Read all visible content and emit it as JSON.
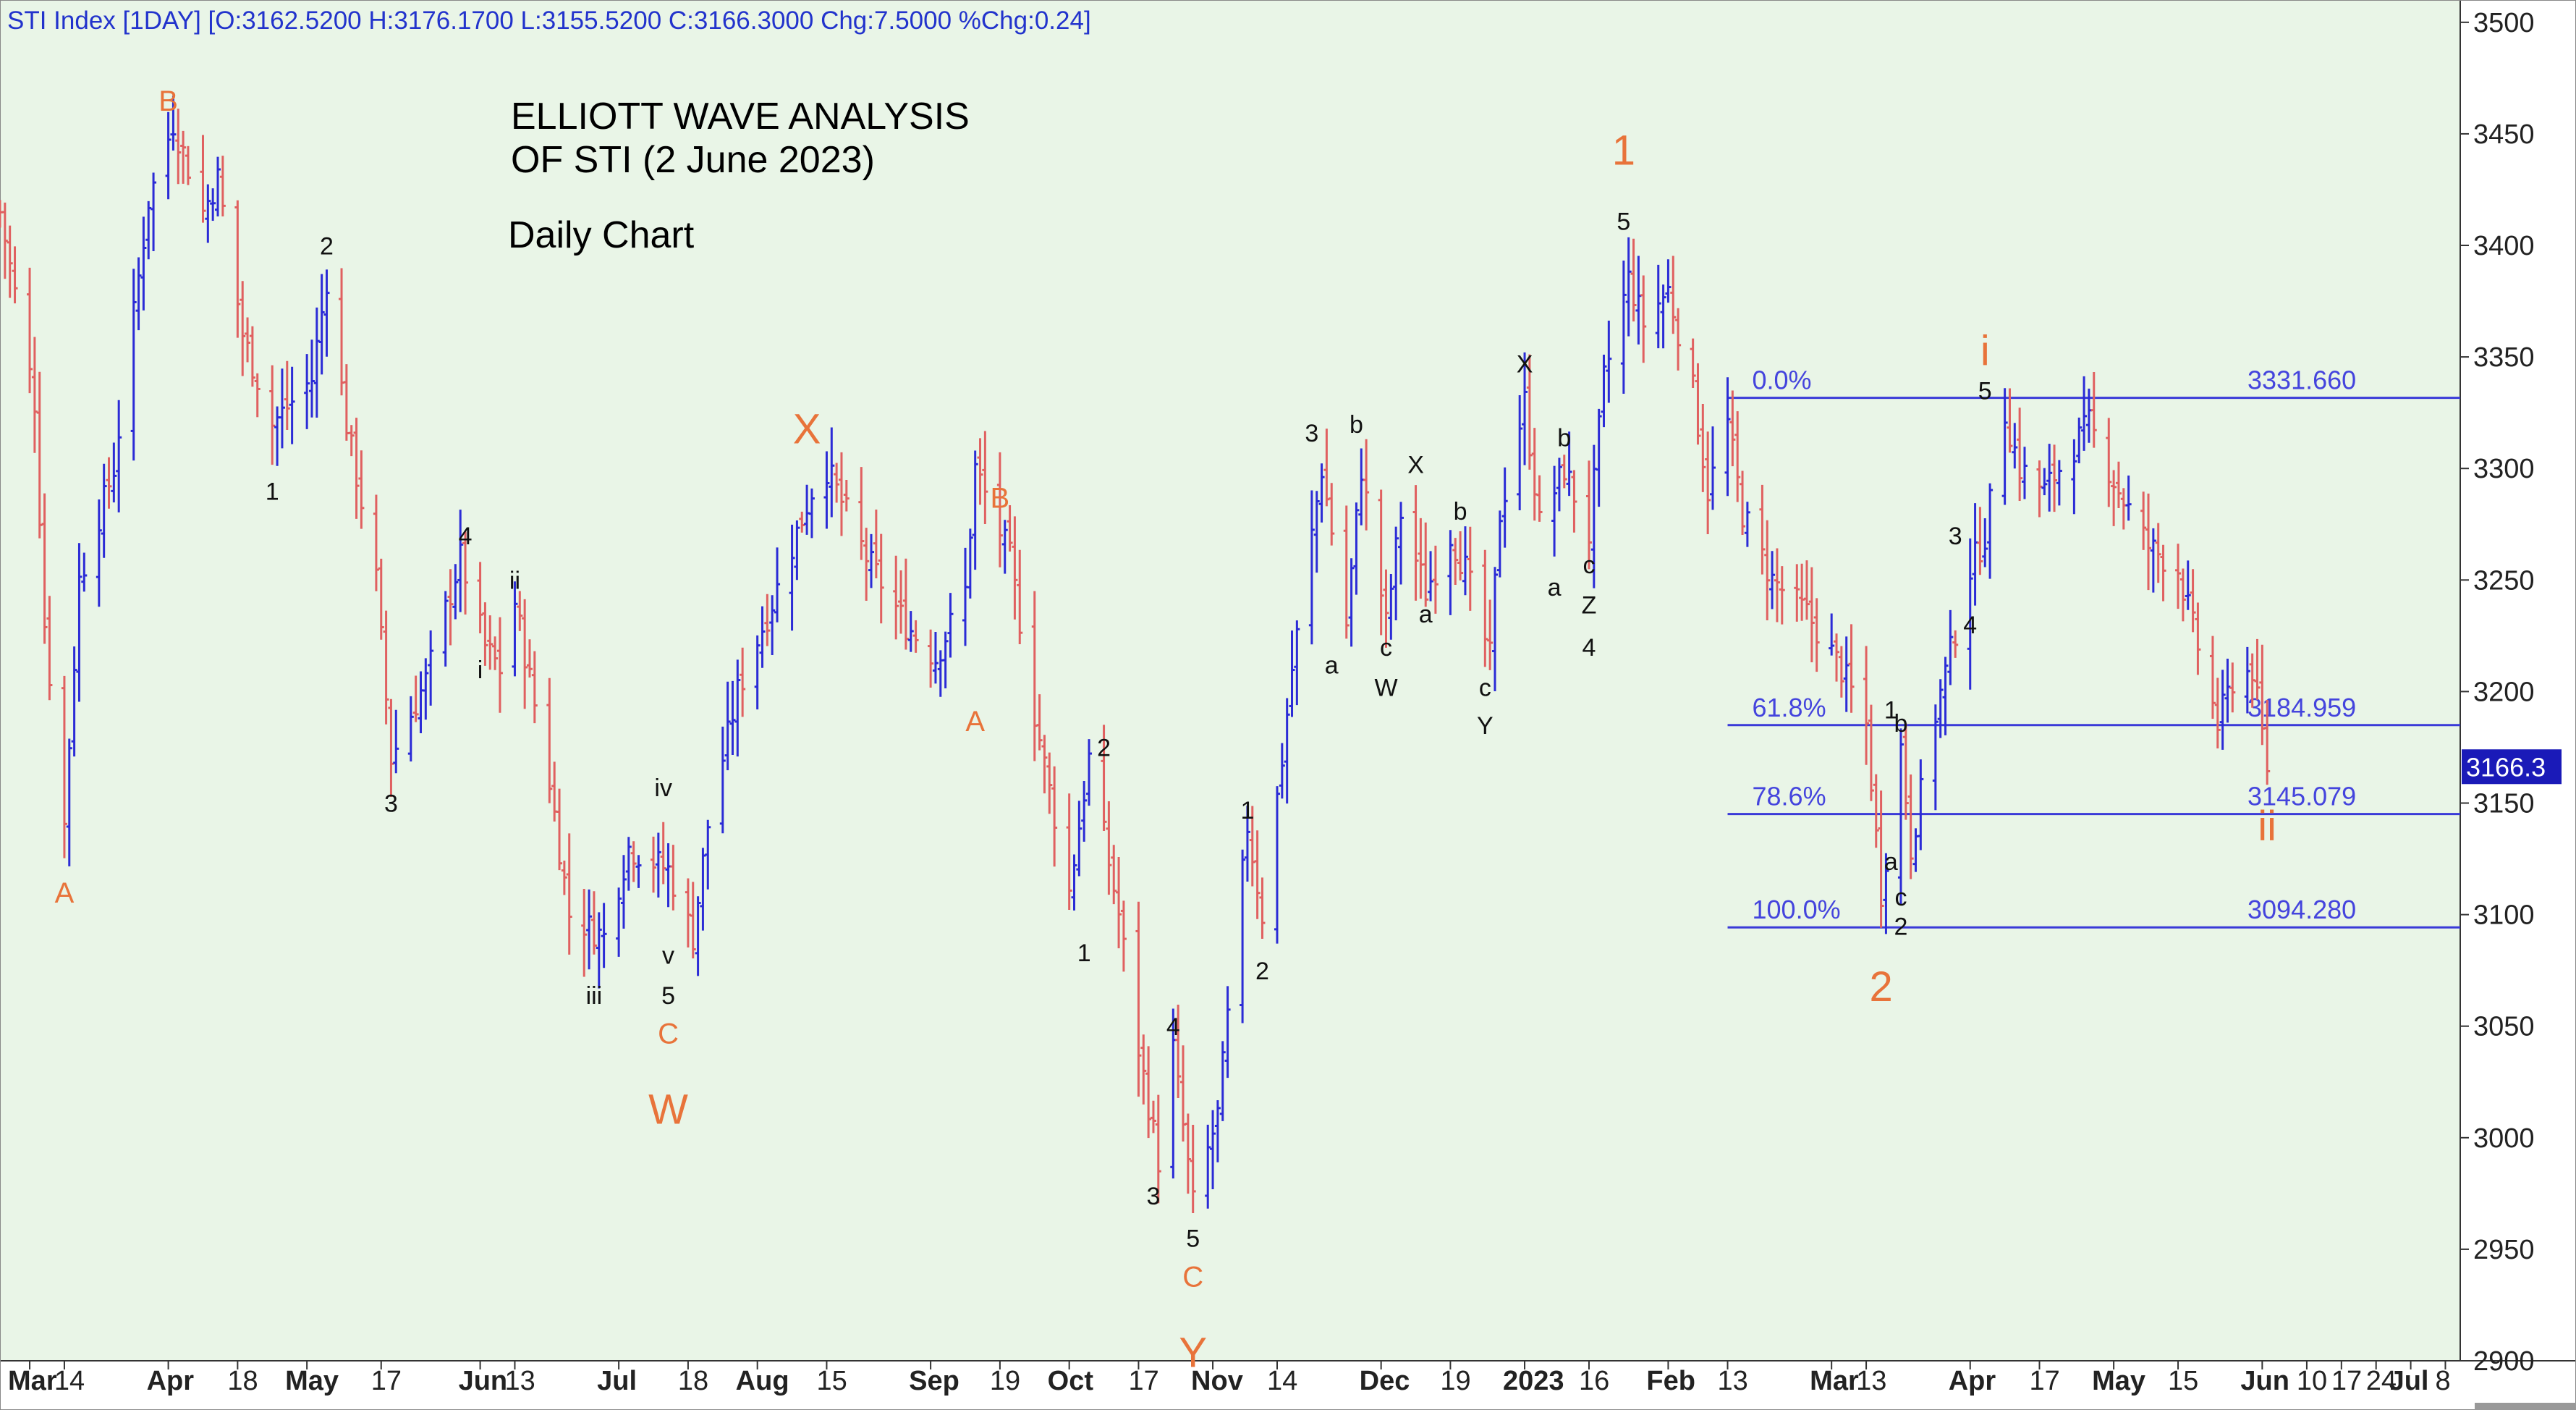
{
  "header": {
    "text": "STI Index [1DAY] [O:3162.5200 H:3176.1700 L:3155.5200 C:3166.3000 Chg:7.5000 %Chg:0.24]"
  },
  "title": {
    "line1": "ELLIOTT WAVE ANALYSIS",
    "line2": "OF STI (2 June 2023)",
    "subtitle": "Daily Chart"
  },
  "colors": {
    "background": "#e9f5e7",
    "up_bar": "#2b2bd6",
    "down_bar": "#e06060",
    "fib_line": "#3a3ad8",
    "wave_major": "#e8733a",
    "wave_minor": "#111111",
    "price_tag_bg": "#1a1ab8"
  },
  "chart_data": {
    "type": "ohlc",
    "timeframe": "1DAY",
    "ylim": [
      2900,
      3510
    ],
    "y_ticks": [
      "3500",
      "3450",
      "3400",
      "3350",
      "3300",
      "3250",
      "3200",
      "3150",
      "3100",
      "3050",
      "3000",
      "2950",
      "2900"
    ],
    "x_range": [
      "2022-03-01",
      "2023-07-11"
    ],
    "x_ticks": [
      {
        "label": "Mar",
        "date": "2022-03-07",
        "major": true
      },
      {
        "label": "14",
        "date": "2022-03-14",
        "major": false
      },
      {
        "label": "Apr",
        "date": "2022-04-04",
        "major": true
      },
      {
        "label": "18",
        "date": "2022-04-18",
        "major": false
      },
      {
        "label": "May",
        "date": "2022-05-02",
        "major": true
      },
      {
        "label": "17",
        "date": "2022-05-17",
        "major": false
      },
      {
        "label": "Jun",
        "date": "2022-06-06",
        "major": true
      },
      {
        "label": "13",
        "date": "2022-06-13",
        "major": false
      },
      {
        "label": "Jul",
        "date": "2022-07-04",
        "major": true
      },
      {
        "label": "18",
        "date": "2022-07-18",
        "major": false
      },
      {
        "label": "Aug",
        "date": "2022-08-01",
        "major": true
      },
      {
        "label": "15",
        "date": "2022-08-15",
        "major": false
      },
      {
        "label": "Sep",
        "date": "2022-09-05",
        "major": true
      },
      {
        "label": "19",
        "date": "2022-09-19",
        "major": false
      },
      {
        "label": "Oct",
        "date": "2022-10-03",
        "major": true
      },
      {
        "label": "17",
        "date": "2022-10-17",
        "major": false
      },
      {
        "label": "Nov",
        "date": "2022-11-01",
        "major": true
      },
      {
        "label": "14",
        "date": "2022-11-14",
        "major": false
      },
      {
        "label": "Dec",
        "date": "2022-12-05",
        "major": true
      },
      {
        "label": "19",
        "date": "2022-12-19",
        "major": false
      },
      {
        "label": "2023",
        "date": "2023-01-03",
        "major": true
      },
      {
        "label": "16",
        "date": "2023-01-16",
        "major": false
      },
      {
        "label": "Feb",
        "date": "2023-02-01",
        "major": true
      },
      {
        "label": "13",
        "date": "2023-02-13",
        "major": false
      },
      {
        "label": "Mar",
        "date": "2023-03-06",
        "major": true
      },
      {
        "label": "13",
        "date": "2023-03-13",
        "major": false
      },
      {
        "label": "Apr",
        "date": "2023-04-03",
        "major": true
      },
      {
        "label": "17",
        "date": "2023-04-17",
        "major": false
      },
      {
        "label": "May",
        "date": "2023-05-02",
        "major": true
      },
      {
        "label": "15",
        "date": "2023-05-15",
        "major": false
      },
      {
        "label": "Jun",
        "date": "2023-06-01",
        "major": true
      },
      {
        "label": "10",
        "date": "2023-06-10",
        "major": false
      },
      {
        "label": "17",
        "date": "2023-06-17",
        "major": false
      },
      {
        "label": "24",
        "date": "2023-06-24",
        "major": false
      },
      {
        "label": "Jul",
        "date": "2023-07-01",
        "major": true
      },
      {
        "label": "8",
        "date": "2023-07-08",
        "major": false
      }
    ],
    "last_price": "3166.3",
    "fibonacci": [
      {
        "pct": "0.0%",
        "value": "3331.660",
        "from": "2023-02-13",
        "to": "2023-06-18"
      },
      {
        "pct": "61.8%",
        "value": "3184.959",
        "from": "2023-02-13",
        "to": "2023-06-18"
      },
      {
        "pct": "78.6%",
        "value": "3145.079",
        "from": "2023-02-13",
        "to": "2023-06-18"
      },
      {
        "pct": "100.0%",
        "value": "3094.280",
        "from": "2023-02-13",
        "to": "2023-06-18"
      }
    ],
    "price_path": [
      [
        "2022-03-01",
        3415
      ],
      [
        "2022-03-08",
        3330
      ],
      [
        "2022-03-10",
        3230
      ],
      [
        "2022-03-14",
        3140
      ],
      [
        "2022-03-17",
        3250
      ],
      [
        "2022-03-24",
        3300
      ],
      [
        "2022-03-31",
        3420
      ],
      [
        "2022-04-05",
        3455
      ],
      [
        "2022-04-11",
        3415
      ],
      [
        "2022-04-14",
        3430
      ],
      [
        "2022-04-19",
        3360
      ],
      [
        "2022-04-25",
        3320
      ],
      [
        "2022-05-03",
        3340
      ],
      [
        "2022-05-06",
        3385
      ],
      [
        "2022-05-10",
        3320
      ],
      [
        "2022-05-16",
        3250
      ],
      [
        "2022-05-19",
        3170
      ],
      [
        "2022-05-26",
        3205
      ],
      [
        "2022-06-02",
        3260
      ],
      [
        "2022-06-07",
        3220
      ],
      [
        "2022-06-10",
        3210
      ],
      [
        "2022-06-13",
        3240
      ],
      [
        "2022-06-20",
        3160
      ],
      [
        "2022-06-24",
        3100
      ],
      [
        "2022-07-01",
        3090
      ],
      [
        "2022-07-06",
        3130
      ],
      [
        "2022-07-14",
        3120
      ],
      [
        "2022-07-19",
        3090
      ],
      [
        "2022-07-22",
        3140
      ],
      [
        "2022-07-28",
        3200
      ],
      [
        "2022-08-04",
        3240
      ],
      [
        "2022-08-12",
        3290
      ],
      [
        "2022-08-15",
        3300
      ],
      [
        "2022-08-23",
        3260
      ],
      [
        "2022-08-31",
        3230
      ],
      [
        "2022-09-06",
        3215
      ],
      [
        "2022-09-12",
        3245
      ],
      [
        "2022-09-14",
        3300
      ],
      [
        "2022-09-21",
        3260
      ],
      [
        "2022-09-26",
        3190
      ],
      [
        "2022-10-03",
        3110
      ],
      [
        "2022-10-07",
        3170
      ],
      [
        "2022-10-13",
        3100
      ],
      [
        "2022-10-17",
        3040
      ],
      [
        "2022-10-21",
        2990
      ],
      [
        "2022-10-24",
        3040
      ],
      [
        "2022-10-28",
        2970
      ],
      [
        "2022-11-02",
        3010
      ],
      [
        "2022-11-08",
        3140
      ],
      [
        "2022-11-11",
        3100
      ],
      [
        "2022-11-15",
        3170
      ],
      [
        "2022-11-17",
        3210
      ],
      [
        "2022-11-21",
        3270
      ],
      [
        "2022-11-23",
        3300
      ],
      [
        "2022-11-28",
        3230
      ],
      [
        "2022-12-01",
        3300
      ],
      [
        "2022-12-06",
        3230
      ],
      [
        "2022-12-09",
        3280
      ],
      [
        "2022-12-14",
        3245
      ],
      [
        "2022-12-19",
        3270
      ],
      [
        "2022-12-22",
        3255
      ],
      [
        "2022-12-27",
        3215
      ],
      [
        "2022-12-29",
        3280
      ],
      [
        "2023-01-03",
        3330
      ],
      [
        "2023-01-06",
        3275
      ],
      [
        "2023-01-11",
        3300
      ],
      [
        "2023-01-16",
        3270
      ],
      [
        "2023-01-19",
        3340
      ],
      [
        "2023-01-24",
        3385
      ],
      [
        "2023-01-27",
        3365
      ],
      [
        "2023-02-01",
        3380
      ],
      [
        "2023-02-06",
        3335
      ],
      [
        "2023-02-09",
        3290
      ],
      [
        "2023-02-13",
        3320
      ],
      [
        "2023-02-16",
        3280
      ],
      [
        "2023-02-22",
        3250
      ],
      [
        "2023-03-01",
        3235
      ],
      [
        "2023-03-08",
        3210
      ],
      [
        "2023-03-13",
        3185
      ],
      [
        "2023-03-16",
        3110
      ],
      [
        "2023-03-20",
        3175
      ],
      [
        "2023-03-22",
        3130
      ],
      [
        "2023-03-27",
        3190
      ],
      [
        "2023-04-03",
        3255
      ],
      [
        "2023-04-06",
        3270
      ],
      [
        "2023-04-10",
        3325
      ],
      [
        "2023-04-13",
        3300
      ],
      [
        "2023-04-18",
        3290
      ],
      [
        "2023-04-24",
        3310
      ],
      [
        "2023-04-27",
        3320
      ],
      [
        "2023-05-03",
        3290
      ],
      [
        "2023-05-09",
        3265
      ],
      [
        "2023-05-15",
        3255
      ],
      [
        "2023-05-19",
        3220
      ],
      [
        "2023-05-23",
        3185
      ],
      [
        "2023-05-26",
        3205
      ],
      [
        "2023-05-30",
        3210
      ],
      [
        "2023-06-02",
        3166
      ]
    ],
    "wave_labels": [
      {
        "t": "A",
        "date": "2022-03-14",
        "v": 3110,
        "style": "major-s"
      },
      {
        "t": "B",
        "date": "2022-04-04",
        "v": 3465,
        "style": "major-s"
      },
      {
        "t": "2",
        "date": "2022-05-06",
        "v": 3400,
        "style": "minor"
      },
      {
        "t": "1",
        "date": "2022-04-25",
        "v": 3290,
        "style": "minor"
      },
      {
        "t": "3",
        "date": "2022-05-19",
        "v": 3150,
        "style": "minor"
      },
      {
        "t": "4",
        "date": "2022-06-03",
        "v": 3270,
        "style": "minor"
      },
      {
        "t": "i",
        "date": "2022-06-06",
        "v": 3210,
        "style": "minor"
      },
      {
        "t": "ii",
        "date": "2022-06-13",
        "v": 3250,
        "style": "minor"
      },
      {
        "t": "iii",
        "date": "2022-06-29",
        "v": 3064,
        "style": "minor"
      },
      {
        "t": "iv",
        "date": "2022-07-13",
        "v": 3157,
        "style": "minor"
      },
      {
        "t": "v",
        "date": "2022-07-14",
        "v": 3082,
        "style": "minor"
      },
      {
        "t": "5",
        "date": "2022-07-14",
        "v": 3064,
        "style": "minor"
      },
      {
        "t": "C",
        "date": "2022-07-14",
        "v": 3047,
        "style": "major-s"
      },
      {
        "t": "W",
        "date": "2022-07-14",
        "v": 3013,
        "style": "major-l"
      },
      {
        "t": "X",
        "date": "2022-08-11",
        "v": 3318,
        "style": "major-l"
      },
      {
        "t": "B",
        "date": "2022-09-19",
        "v": 3287,
        "style": "major-s"
      },
      {
        "t": "A",
        "date": "2022-09-14",
        "v": 3187,
        "style": "major-s"
      },
      {
        "t": "2",
        "date": "2022-10-10",
        "v": 3175,
        "style": "minor"
      },
      {
        "t": "1",
        "date": "2022-10-06",
        "v": 3083,
        "style": "minor"
      },
      {
        "t": "4",
        "date": "2022-10-24",
        "v": 3050,
        "style": "minor"
      },
      {
        "t": "3",
        "date": "2022-10-20",
        "v": 2974,
        "style": "minor"
      },
      {
        "t": "5",
        "date": "2022-10-28",
        "v": 2955,
        "style": "minor"
      },
      {
        "t": "C",
        "date": "2022-10-28",
        "v": 2938,
        "style": "major-s"
      },
      {
        "t": "Y",
        "date": "2022-10-28",
        "v": 2904,
        "style": "major-l"
      },
      {
        "t": "1",
        "date": "2022-11-08",
        "v": 3147,
        "style": "minor"
      },
      {
        "t": "2",
        "date": "2022-11-11",
        "v": 3075,
        "style": "minor"
      },
      {
        "t": "3",
        "date": "2022-11-21",
        "v": 3316,
        "style": "minor"
      },
      {
        "t": "b",
        "date": "2022-11-30",
        "v": 3320,
        "style": "minor"
      },
      {
        "t": "a",
        "date": "2022-11-25",
        "v": 3212,
        "style": "minor"
      },
      {
        "t": "c",
        "date": "2022-12-06",
        "v": 3220,
        "style": "minor"
      },
      {
        "t": "W",
        "date": "2022-12-06",
        "v": 3202,
        "style": "minor"
      },
      {
        "t": "X",
        "date": "2022-12-12",
        "v": 3302,
        "style": "minor"
      },
      {
        "t": "a",
        "date": "2022-12-14",
        "v": 3235,
        "style": "minor"
      },
      {
        "t": "b",
        "date": "2022-12-21",
        "v": 3281,
        "style": "minor"
      },
      {
        "t": "c",
        "date": "2022-12-26",
        "v": 3202,
        "style": "minor"
      },
      {
        "t": "Y",
        "date": "2022-12-26",
        "v": 3185,
        "style": "minor"
      },
      {
        "t": "X",
        "date": "2023-01-03",
        "v": 3347,
        "style": "minor"
      },
      {
        "t": "b",
        "date": "2023-01-11",
        "v": 3314,
        "style": "minor"
      },
      {
        "t": "a",
        "date": "2023-01-09",
        "v": 3247,
        "style": "minor"
      },
      {
        "t": "c",
        "date": "2023-01-16",
        "v": 3257,
        "style": "minor"
      },
      {
        "t": "Z",
        "date": "2023-01-16",
        "v": 3239,
        "style": "minor"
      },
      {
        "t": "4",
        "date": "2023-01-16",
        "v": 3220,
        "style": "minor"
      },
      {
        "t": "1",
        "date": "2023-01-23",
        "v": 3443,
        "style": "major-l"
      },
      {
        "t": "5",
        "date": "2023-01-23",
        "v": 3411,
        "style": "minor"
      },
      {
        "t": "i",
        "date": "2023-04-06",
        "v": 3353,
        "style": "major-l"
      },
      {
        "t": "5",
        "date": "2023-04-06",
        "v": 3335,
        "style": "minor"
      },
      {
        "t": "3",
        "date": "2023-03-31",
        "v": 3270,
        "style": "minor"
      },
      {
        "t": "4",
        "date": "2023-04-03",
        "v": 3230,
        "style": "minor"
      },
      {
        "t": "1",
        "date": "2023-03-18",
        "v": 3192,
        "style": "minor"
      },
      {
        "t": "b",
        "date": "2023-03-20",
        "v": 3186,
        "style": "minor"
      },
      {
        "t": "a",
        "date": "2023-03-18",
        "v": 3124,
        "style": "minor"
      },
      {
        "t": "c",
        "date": "2023-03-20",
        "v": 3108,
        "style": "minor"
      },
      {
        "t": "2",
        "date": "2023-03-20",
        "v": 3095,
        "style": "minor"
      },
      {
        "t": "2",
        "date": "2023-03-16",
        "v": 3068,
        "style": "major-l"
      },
      {
        "t": "ii",
        "date": "2023-06-02",
        "v": 3140,
        "style": "major-l"
      }
    ]
  }
}
